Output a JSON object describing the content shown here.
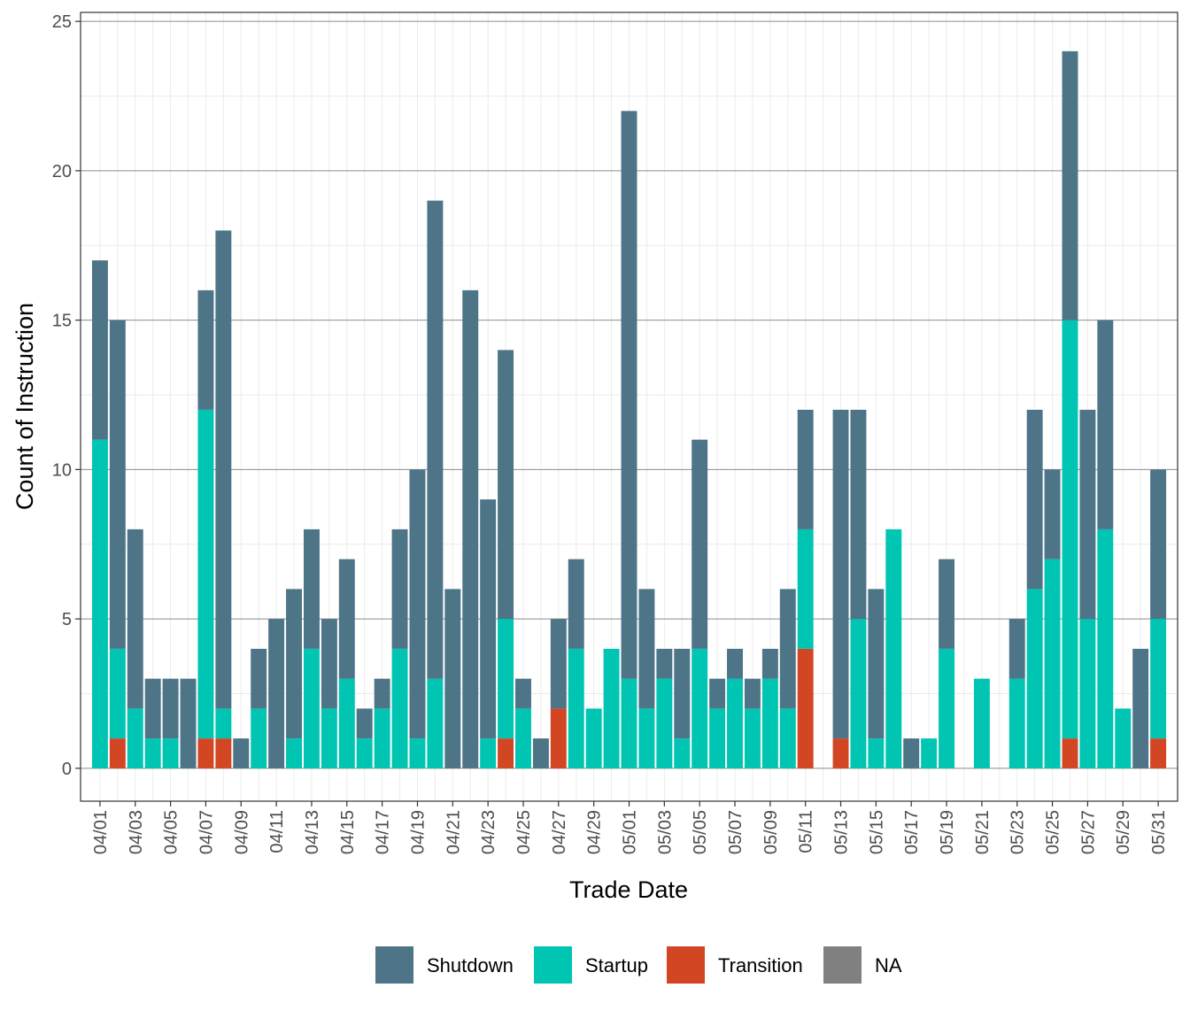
{
  "chart_data": {
    "type": "bar",
    "stacked": true,
    "xlabel": "Trade Date",
    "ylabel": "Count of Instruction",
    "ylim": [
      -1.1,
      25.3
    ],
    "yticks": [
      0,
      5,
      10,
      15,
      20,
      25
    ],
    "grid": true,
    "legend_position": "bottom",
    "categories": [
      "04/01",
      "04/02",
      "04/03",
      "04/04",
      "04/05",
      "04/06",
      "04/07",
      "04/08",
      "04/09",
      "04/10",
      "04/11",
      "04/12",
      "04/13",
      "04/14",
      "04/15",
      "04/16",
      "04/17",
      "04/18",
      "04/19",
      "04/20",
      "04/21",
      "04/22",
      "04/23",
      "04/24",
      "04/25",
      "04/26",
      "04/27",
      "04/28",
      "04/29",
      "04/30",
      "05/01",
      "05/02",
      "05/03",
      "05/04",
      "05/05",
      "05/06",
      "05/07",
      "05/08",
      "05/09",
      "05/10",
      "05/11",
      "05/12",
      "05/13",
      "05/14",
      "05/15",
      "05/16",
      "05/17",
      "05/18",
      "05/19",
      "05/20",
      "05/21",
      "05/22",
      "05/23",
      "05/24",
      "05/25",
      "05/26",
      "05/27",
      "05/28",
      "05/29",
      "05/30",
      "05/31"
    ],
    "tick_labels": [
      "04/01",
      "04/03",
      "04/05",
      "04/07",
      "04/09",
      "04/11",
      "04/13",
      "04/15",
      "04/17",
      "04/19",
      "04/21",
      "04/23",
      "04/25",
      "04/27",
      "04/29",
      "05/01",
      "05/03",
      "05/05",
      "05/07",
      "05/09",
      "05/11",
      "05/13",
      "05/15",
      "05/17",
      "05/19",
      "05/21",
      "05/23",
      "05/25",
      "05/27",
      "05/29",
      "05/31"
    ],
    "series": [
      {
        "name": "Transition",
        "color": "#d24623",
        "values": [
          0,
          1,
          0,
          0,
          0,
          0,
          1,
          1,
          0,
          0,
          0,
          0,
          0,
          0,
          0,
          0,
          0,
          0,
          0,
          0,
          0,
          0,
          0,
          1,
          0,
          0,
          2,
          0,
          0,
          0,
          0,
          0,
          0,
          0,
          0,
          0,
          0,
          0,
          0,
          0,
          4,
          0,
          1,
          0,
          0,
          0,
          0,
          0,
          0,
          0,
          0,
          0,
          0,
          0,
          0,
          1,
          0,
          0,
          0,
          0,
          1
        ]
      },
      {
        "name": "Startup",
        "color": "#00c5b2",
        "values": [
          11,
          3,
          2,
          1,
          1,
          0,
          11,
          1,
          0,
          2,
          0,
          1,
          4,
          2,
          3,
          1,
          2,
          4,
          1,
          3,
          0,
          0,
          1,
          4,
          2,
          0,
          0,
          4,
          2,
          4,
          3,
          2,
          3,
          1,
          4,
          2,
          3,
          2,
          3,
          2,
          4,
          0,
          0,
          5,
          1,
          8,
          0,
          1,
          4,
          0,
          3,
          0,
          3,
          6,
          7,
          14,
          5,
          8,
          2,
          0,
          4
        ]
      },
      {
        "name": "Shutdown",
        "color": "#4e7488",
        "values": [
          6,
          11,
          6,
          2,
          2,
          3,
          4,
          16,
          1,
          2,
          5,
          5,
          4,
          3,
          4,
          1,
          1,
          4,
          9,
          16,
          6,
          16,
          8,
          9,
          1,
          1,
          3,
          3,
          0,
          0,
          19,
          4,
          1,
          3,
          7,
          1,
          1,
          1,
          1,
          4,
          4,
          0,
          11,
          7,
          5,
          0,
          1,
          0,
          3,
          0,
          0,
          0,
          2,
          6,
          3,
          9,
          7,
          7,
          0,
          4,
          5
        ]
      },
      {
        "name": "NA",
        "color": "#808080",
        "values": [
          0,
          0,
          0,
          0,
          0,
          0,
          0,
          0,
          0,
          0,
          0,
          0,
          0,
          0,
          0,
          0,
          0,
          0,
          0,
          0,
          0,
          0,
          0,
          0,
          0,
          0,
          0,
          0,
          0,
          0,
          0,
          0,
          0,
          0,
          0,
          0,
          0,
          0,
          0,
          0,
          0,
          0,
          0,
          0,
          0,
          0,
          0,
          0,
          0,
          0,
          0,
          0,
          0,
          0,
          0,
          0,
          0,
          0,
          0,
          0,
          0
        ]
      }
    ],
    "legend": [
      {
        "name": "Shutdown",
        "color": "#4e7488"
      },
      {
        "name": "Startup",
        "color": "#00c5b2"
      },
      {
        "name": "Transition",
        "color": "#d24623"
      },
      {
        "name": "NA",
        "color": "#808080"
      }
    ]
  }
}
